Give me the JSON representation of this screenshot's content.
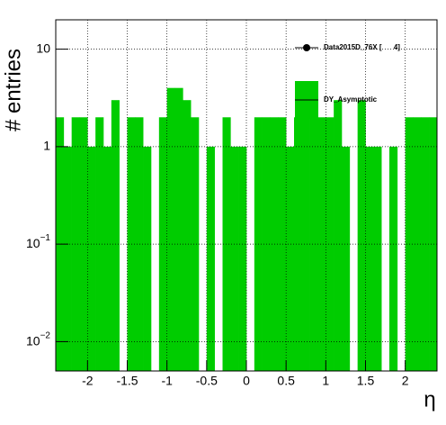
{
  "chart_data": {
    "type": "histogram",
    "x_label": "η",
    "y_label": "# entries",
    "bins": [
      -2.4,
      -2.3,
      -2.2,
      -2.1,
      -2.0,
      -1.9,
      -1.8,
      -1.7,
      -1.6,
      -1.5,
      -1.4,
      -1.3,
      -1.2,
      -1.1,
      -1.0,
      -0.9,
      -0.8,
      -0.7,
      -0.6,
      -0.5,
      -0.4,
      -0.3,
      -0.2,
      -0.1,
      0.0,
      0.1,
      0.2,
      0.3,
      0.4,
      0.5,
      0.6,
      0.7,
      0.8,
      0.9,
      1.0,
      1.1,
      1.2,
      1.3,
      1.4,
      1.5,
      1.6,
      1.7,
      1.8,
      1.9,
      2.0,
      2.1,
      2.2,
      2.3,
      2.4
    ],
    "series": [
      {
        "name": "Data2015D_76X [      4]",
        "color": "#000000",
        "marker": true
      },
      {
        "name": "DY_Asymptotic",
        "color": "#00cc00",
        "values": [
          2,
          1,
          2,
          2,
          1,
          2,
          1,
          3,
          0,
          2,
          2,
          1,
          0,
          2,
          4,
          4,
          3,
          2,
          0,
          1,
          0,
          2,
          1,
          1,
          0,
          2,
          2,
          2,
          2,
          1,
          2,
          3,
          2,
          2,
          2,
          3,
          1,
          0,
          3,
          1,
          1,
          0,
          1,
          0,
          2,
          2,
          2,
          2
        ]
      }
    ],
    "xlim": [
      -2.4,
      2.4
    ],
    "ylim": [
      0.005,
      20
    ],
    "log_y": true,
    "grid": true,
    "xticks": [
      -2,
      -1.5,
      -1,
      -0.5,
      0,
      0.5,
      1,
      1.5,
      2
    ],
    "yticks": [
      {
        "value": 0.01,
        "label": "10",
        "exponent": "−2"
      },
      {
        "value": 0.1,
        "label": "10",
        "exponent": "−1"
      },
      1,
      10
    ],
    "legend": "top-right"
  }
}
